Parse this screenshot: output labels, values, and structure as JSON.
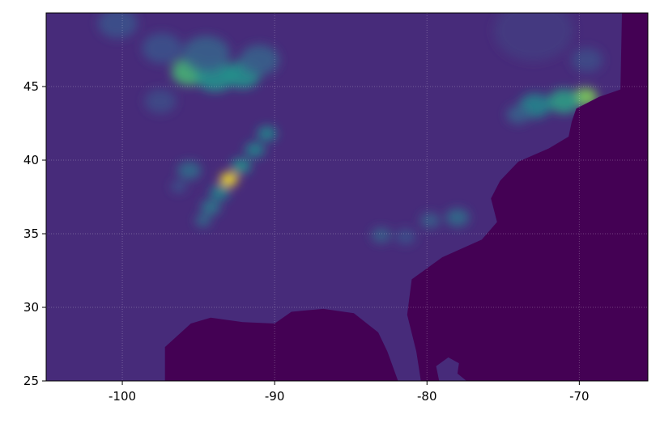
{
  "chart_data": {
    "type": "heatmap",
    "title": "",
    "xlabel": "",
    "ylabel": "",
    "colormap": "viridis",
    "xlim": [
      -105,
      -65.5
    ],
    "ylim": [
      25,
      50
    ],
    "grid": true,
    "xticks": [
      -100,
      -90,
      -80,
      -70
    ],
    "yticks": [
      25,
      30,
      35,
      40,
      45
    ],
    "xtick_labels": [
      "-100",
      "-90",
      "-80",
      "-70"
    ],
    "ytick_labels": [
      "25",
      "30",
      "35",
      "40",
      "45"
    ],
    "colors": {
      "nodata": "#440154",
      "land_base": "#472b7a",
      "low": "#3b528b",
      "mid": "#21918c",
      "high": "#5ec962",
      "peak": "#fde725"
    },
    "ocean_boundary": [
      [
        -97.2,
        25
      ],
      [
        -97.2,
        27.3
      ],
      [
        -95.5,
        28.9
      ],
      [
        -94.2,
        29.3
      ],
      [
        -92.1,
        29.0
      ],
      [
        -90.0,
        28.9
      ],
      [
        -88.9,
        29.7
      ],
      [
        -86.8,
        29.9
      ],
      [
        -84.8,
        29.6
      ],
      [
        -83.2,
        28.3
      ],
      [
        -82.6,
        27.0
      ],
      [
        -81.9,
        25
      ],
      [
        -80.4,
        25
      ],
      [
        -80.7,
        27.0
      ],
      [
        -81.3,
        29.5
      ],
      [
        -81.0,
        31.9
      ],
      [
        -79.0,
        33.4
      ],
      [
        -76.4,
        34.6
      ],
      [
        -75.4,
        35.8
      ],
      [
        -75.8,
        37.4
      ],
      [
        -75.2,
        38.6
      ],
      [
        -74.0,
        39.9
      ],
      [
        -72.0,
        40.8
      ],
      [
        -70.7,
        41.6
      ],
      [
        -70.5,
        42.6
      ],
      [
        -70.2,
        43.5
      ],
      [
        -68.7,
        44.3
      ],
      [
        -67.3,
        44.8
      ],
      [
        -67.2,
        50
      ],
      [
        -65.5,
        50
      ],
      [
        -65.5,
        25
      ]
    ],
    "bahamas_region": [
      [
        -79.2,
        25
      ],
      [
        -79.4,
        26.0
      ],
      [
        -78.6,
        26.6
      ],
      [
        -77.9,
        26.2
      ],
      [
        -78.0,
        25.5
      ],
      [
        -77.4,
        25
      ]
    ],
    "precip_cells": [
      {
        "lon": -95.6,
        "lat": 46.0,
        "r": 0.9,
        "v": 0.65
      },
      {
        "lon": -93.9,
        "lat": 45.7,
        "r": 1.0,
        "v": 0.5
      },
      {
        "lon": -92.1,
        "lat": 45.8,
        "r": 0.9,
        "v": 0.5
      },
      {
        "lon": -91.0,
        "lat": 46.8,
        "r": 1.0,
        "v": 0.3
      },
      {
        "lon": -94.5,
        "lat": 47.2,
        "r": 1.2,
        "v": 0.3
      },
      {
        "lon": -97.4,
        "lat": 47.6,
        "r": 1.0,
        "v": 0.25
      },
      {
        "lon": -100.3,
        "lat": 49.3,
        "r": 1.0,
        "v": 0.25
      },
      {
        "lon": -97.5,
        "lat": 44.0,
        "r": 0.8,
        "v": 0.2
      },
      {
        "lon": -90.5,
        "lat": 41.8,
        "r": 0.5,
        "v": 0.45
      },
      {
        "lon": -91.3,
        "lat": 40.7,
        "r": 0.5,
        "v": 0.45
      },
      {
        "lon": -92.2,
        "lat": 39.6,
        "r": 0.5,
        "v": 0.5
      },
      {
        "lon": -93.0,
        "lat": 38.7,
        "r": 0.45,
        "v": 1.0
      },
      {
        "lon": -93.6,
        "lat": 37.8,
        "r": 0.5,
        "v": 0.45
      },
      {
        "lon": -94.2,
        "lat": 36.8,
        "r": 0.5,
        "v": 0.4
      },
      {
        "lon": -94.7,
        "lat": 35.9,
        "r": 0.4,
        "v": 0.35
      },
      {
        "lon": -95.6,
        "lat": 39.3,
        "r": 0.6,
        "v": 0.35
      },
      {
        "lon": -96.3,
        "lat": 38.2,
        "r": 0.4,
        "v": 0.25
      },
      {
        "lon": -69.6,
        "lat": 44.3,
        "r": 0.6,
        "v": 0.8
      },
      {
        "lon": -71.0,
        "lat": 44.0,
        "r": 0.8,
        "v": 0.55
      },
      {
        "lon": -72.9,
        "lat": 43.7,
        "r": 0.8,
        "v": 0.45
      },
      {
        "lon": -74.0,
        "lat": 43.1,
        "r": 0.6,
        "v": 0.3
      },
      {
        "lon": -69.5,
        "lat": 46.8,
        "r": 0.8,
        "v": 0.2
      },
      {
        "lon": -78.0,
        "lat": 36.1,
        "r": 0.6,
        "v": 0.35
      },
      {
        "lon": -79.8,
        "lat": 35.9,
        "r": 0.5,
        "v": 0.3
      },
      {
        "lon": -83.0,
        "lat": 34.9,
        "r": 0.5,
        "v": 0.3
      },
      {
        "lon": -81.4,
        "lat": 34.8,
        "r": 0.5,
        "v": 0.25
      },
      {
        "lon": -73.0,
        "lat": 48.8,
        "r": 2.0,
        "v": 0.12
      }
    ]
  }
}
